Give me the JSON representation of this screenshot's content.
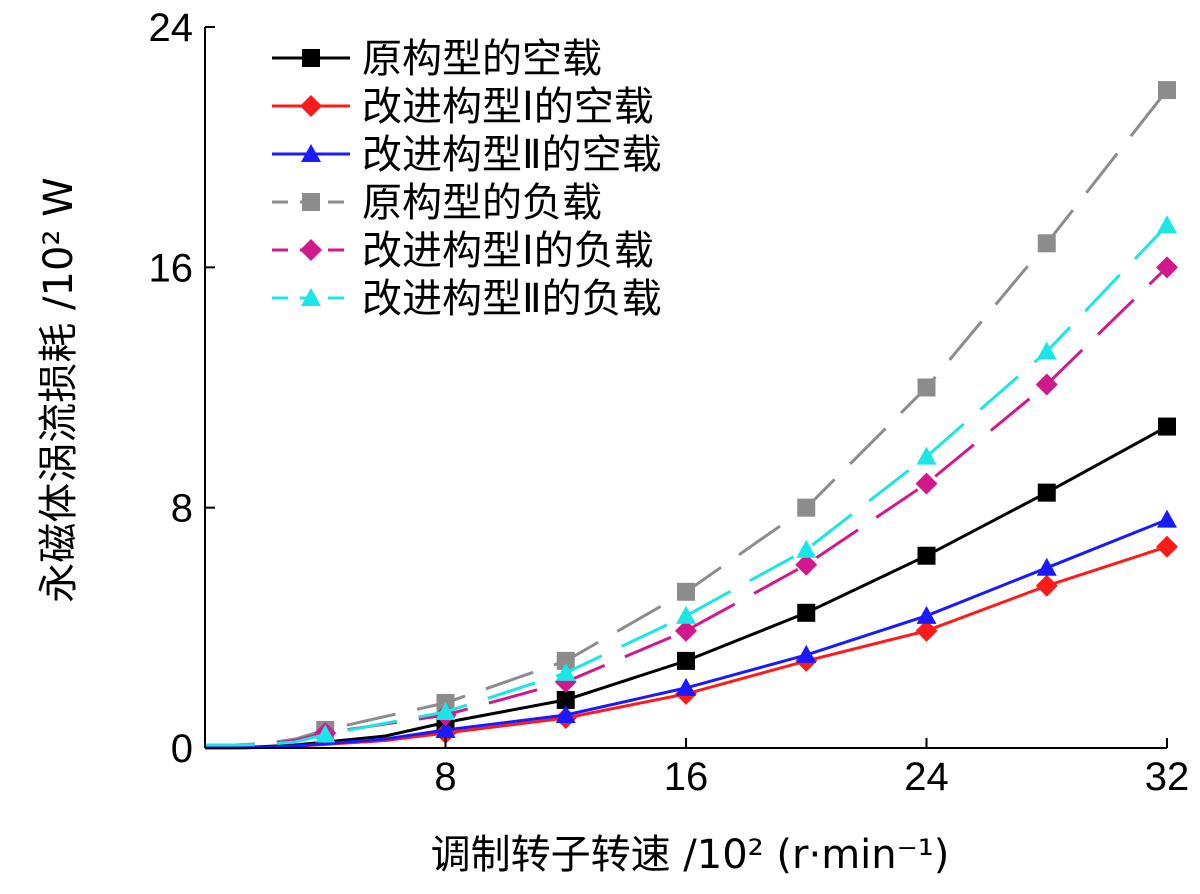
{
  "chart_data": {
    "type": "line",
    "title": "",
    "xlabel": "调制转子转速 /10² (r·min⁻¹)",
    "ylabel": "永磁体涡流损耗 /10² W",
    "xlim": [
      0,
      32
    ],
    "ylim": [
      0,
      24
    ],
    "xticks": [
      "8",
      "16",
      "24",
      "32"
    ],
    "yticks": [
      "0",
      "8",
      "16",
      "24"
    ],
    "legend_position": "top-left",
    "series": [
      {
        "name": "原构型的空载",
        "color": "#000000",
        "dashed": false,
        "marker": "square",
        "x": [
          0.0,
          1.0,
          2.0,
          3.0,
          4.0,
          6.0,
          8.0,
          12.0,
          16.0,
          20.0,
          24.0,
          28.0,
          32.0
        ],
        "y": [
          0.0,
          0.0,
          0.05,
          0.1,
          0.2,
          0.4,
          0.85,
          1.6,
          2.9,
          4.5,
          6.4,
          8.5,
          10.7
        ]
      },
      {
        "name": "改进构型Ⅰ的空载",
        "color": "#ff1a1a",
        "dashed": false,
        "marker": "diamond",
        "x": [
          0.0,
          1.0,
          2.0,
          3.0,
          4.0,
          6.0,
          8.0,
          12.0,
          16.0,
          20.0,
          24.0,
          28.0,
          32.0
        ],
        "y": [
          0.0,
          0.0,
          0.02,
          0.06,
          0.12,
          0.25,
          0.5,
          1.0,
          1.8,
          2.9,
          3.9,
          5.4,
          6.7
        ]
      },
      {
        "name": "改进构型Ⅱ的空载",
        "color": "#1a1aff",
        "dashed": false,
        "marker": "triangle",
        "x": [
          0.0,
          1.0,
          2.0,
          3.0,
          4.0,
          6.0,
          8.0,
          12.0,
          16.0,
          20.0,
          24.0,
          28.0,
          32.0
        ],
        "y": [
          0.0,
          0.0,
          0.03,
          0.07,
          0.14,
          0.3,
          0.6,
          1.1,
          2.0,
          3.1,
          4.4,
          6.0,
          7.6
        ]
      },
      {
        "name": "原构型的负载",
        "color": "#8c8c8c",
        "dashed": true,
        "marker": "square",
        "x": [
          0.0,
          1.0,
          2.0,
          3.0,
          4.0,
          8.0,
          12.0,
          16.0,
          20.0,
          24.0,
          28.0,
          32.0
        ],
        "y": [
          0.1,
          0.1,
          0.15,
          0.3,
          0.6,
          1.5,
          2.9,
          5.2,
          8.0,
          12.0,
          16.8,
          21.9
        ]
      },
      {
        "name": "改进构型Ⅰ的负载",
        "color": "#d1188c",
        "dashed": true,
        "marker": "diamond",
        "x": [
          0.0,
          1.0,
          2.0,
          3.0,
          4.0,
          8.0,
          12.0,
          16.0,
          20.0,
          24.0,
          28.0,
          32.0
        ],
        "y": [
          0.1,
          0.1,
          0.12,
          0.25,
          0.5,
          1.1,
          2.2,
          3.9,
          6.1,
          8.8,
          12.1,
          16.0
        ]
      },
      {
        "name": "改进构型Ⅱ的负载",
        "color": "#1ae6e6",
        "dashed": true,
        "marker": "triangle",
        "x": [
          0.0,
          1.0,
          2.0,
          3.0,
          4.0,
          8.0,
          12.0,
          16.0,
          20.0,
          24.0,
          28.0,
          32.0
        ],
        "y": [
          0.1,
          0.1,
          0.12,
          0.2,
          0.45,
          1.2,
          2.5,
          4.4,
          6.6,
          9.7,
          13.2,
          17.4
        ]
      }
    ]
  }
}
